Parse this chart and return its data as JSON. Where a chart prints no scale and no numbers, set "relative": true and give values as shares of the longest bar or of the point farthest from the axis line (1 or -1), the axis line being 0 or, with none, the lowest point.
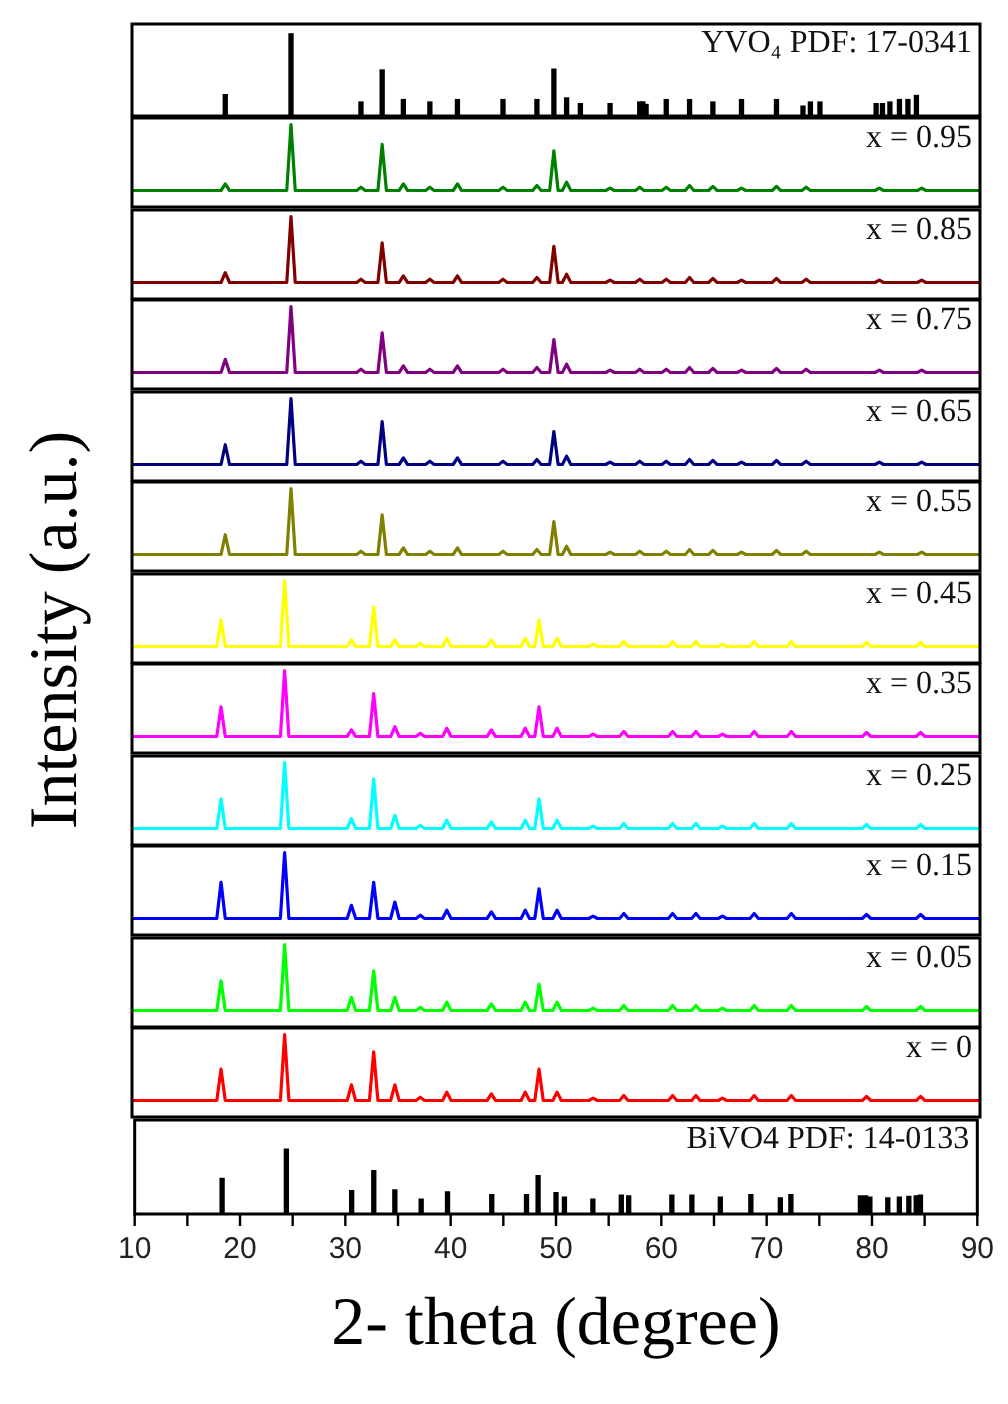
{
  "chart_data": [
    {
      "type": "bar",
      "relative": true,
      "color": "#000000",
      "ylabel": "Intensity (a.u.)",
      "xlim": [
        10,
        90
      ],
      "tick_labels": false,
      "annotations": [
        "YVO₄ PDF: 17-0341"
      ],
      "x": [
        18.8,
        25.0,
        31.6,
        33.6,
        35.6,
        38.1,
        40.7,
        45.0,
        48.2,
        49.8,
        51.0,
        52.3,
        55.1,
        57.9,
        58.2,
        58.5,
        60.4,
        62.6,
        64.8,
        67.5,
        70.8,
        73.3,
        74.0,
        74.9,
        80.2,
        80.8,
        81.5,
        82.4,
        83.2,
        84.0
      ],
      "values": [
        0.26,
        1,
        0.17,
        0.56,
        0.2,
        0.17,
        0.2,
        0.2,
        0.2,
        0.57,
        0.22,
        0.15,
        0.15,
        0.17,
        0.17,
        0.14,
        0.2,
        0.2,
        0.17,
        0.2,
        0.2,
        0.12,
        0.17,
        0.17,
        0.15,
        0.15,
        0.17,
        0.2,
        0.2,
        0.25
      ]
    },
    {
      "type": "line",
      "relative": true,
      "color": "#008000",
      "xlim": [
        10,
        90
      ],
      "tick_labels": false,
      "annotations": [
        "x = 0.95"
      ],
      "x": [
        10,
        18.4,
        18.8,
        19.2,
        24.6,
        25.0,
        25.4,
        31.2,
        31.6,
        32.0,
        33.2,
        33.6,
        34.0,
        35.2,
        35.6,
        36.0,
        37.7,
        38.1,
        38.5,
        40.3,
        40.7,
        41.1,
        44.6,
        45.0,
        45.4,
        47.8,
        48.2,
        48.6,
        49.4,
        49.8,
        50.2,
        50.6,
        51.0,
        51.4,
        54.7,
        55.1,
        55.5,
        57.5,
        57.9,
        58.3,
        60.0,
        60.4,
        60.8,
        62.2,
        62.6,
        63.0,
        64.4,
        64.8,
        65.2,
        67.1,
        67.5,
        67.9,
        70.4,
        70.8,
        71.2,
        73.2,
        73.6,
        74.0,
        80.1,
        80.5,
        80.9,
        84.1,
        84.5,
        84.9,
        90
      ],
      "values": [
        0.2,
        0.2,
        0.28,
        0.2,
        0.2,
        1,
        0.2,
        0.2,
        0.24,
        0.2,
        0.2,
        0.76,
        0.2,
        0.2,
        0.28,
        0.2,
        0.2,
        0.24,
        0.2,
        0.2,
        0.28,
        0.2,
        0.2,
        0.24,
        0.2,
        0.2,
        0.26,
        0.2,
        0.2,
        0.68,
        0.2,
        0.2,
        0.3,
        0.2,
        0.2,
        0.23,
        0.2,
        0.2,
        0.24,
        0.2,
        0.2,
        0.24,
        0.2,
        0.2,
        0.26,
        0.2,
        0.2,
        0.25,
        0.2,
        0.2,
        0.23,
        0.2,
        0.2,
        0.25,
        0.2,
        0.2,
        0.24,
        0.2,
        0.2,
        0.23,
        0.2,
        0.2,
        0.23,
        0.2,
        0.2
      ]
    },
    {
      "type": "line",
      "relative": true,
      "color": "#800000",
      "xlim": [
        10,
        90
      ],
      "tick_labels": false,
      "annotations": [
        "x = 0.85"
      ],
      "x": [
        10,
        18.4,
        18.8,
        19.2,
        24.6,
        25.0,
        25.4,
        31.2,
        31.6,
        32.0,
        33.2,
        33.6,
        34.0,
        35.2,
        35.6,
        36.0,
        37.7,
        38.1,
        38.5,
        40.3,
        40.7,
        41.1,
        44.6,
        45.0,
        45.4,
        47.8,
        48.2,
        48.6,
        49.4,
        49.8,
        50.2,
        50.6,
        51.0,
        51.4,
        54.7,
        55.1,
        55.5,
        57.5,
        57.9,
        58.3,
        60.0,
        60.4,
        60.8,
        62.2,
        62.6,
        63.0,
        64.4,
        64.8,
        65.2,
        67.1,
        67.5,
        67.9,
        70.4,
        70.8,
        71.2,
        73.2,
        73.6,
        74.0,
        80.1,
        80.5,
        80.9,
        84.1,
        84.5,
        84.9,
        90
      ],
      "values": [
        0.2,
        0.2,
        0.32,
        0.2,
        0.2,
        1,
        0.2,
        0.2,
        0.24,
        0.2,
        0.2,
        0.68,
        0.2,
        0.2,
        0.28,
        0.2,
        0.2,
        0.24,
        0.2,
        0.2,
        0.28,
        0.2,
        0.2,
        0.24,
        0.2,
        0.2,
        0.26,
        0.2,
        0.2,
        0.64,
        0.2,
        0.2,
        0.3,
        0.2,
        0.2,
        0.23,
        0.2,
        0.2,
        0.24,
        0.2,
        0.2,
        0.24,
        0.2,
        0.2,
        0.26,
        0.2,
        0.2,
        0.25,
        0.2,
        0.2,
        0.23,
        0.2,
        0.2,
        0.25,
        0.2,
        0.2,
        0.24,
        0.2,
        0.2,
        0.23,
        0.2,
        0.2,
        0.23,
        0.2,
        0.2
      ]
    },
    {
      "type": "line",
      "relative": true,
      "color": "#800080",
      "xlim": [
        10,
        90
      ],
      "tick_labels": false,
      "annotations": [
        "x = 0.75"
      ],
      "x": [
        10,
        18.4,
        18.8,
        19.2,
        24.6,
        25.0,
        25.4,
        31.2,
        31.6,
        32.0,
        33.2,
        33.6,
        34.0,
        35.2,
        35.6,
        36.0,
        37.7,
        38.1,
        38.5,
        40.3,
        40.7,
        41.1,
        44.6,
        45.0,
        45.4,
        47.8,
        48.2,
        48.6,
        49.4,
        49.8,
        50.2,
        50.6,
        51.0,
        51.4,
        54.7,
        55.1,
        55.5,
        57.5,
        57.9,
        58.3,
        60.0,
        60.4,
        60.8,
        62.2,
        62.6,
        63.0,
        64.4,
        64.8,
        65.2,
        67.1,
        67.5,
        67.9,
        70.4,
        70.8,
        71.2,
        73.2,
        73.6,
        74.0,
        80.1,
        80.5,
        80.9,
        84.1,
        84.5,
        84.9,
        90
      ],
      "values": [
        0.2,
        0.2,
        0.36,
        0.2,
        0.2,
        1,
        0.2,
        0.2,
        0.24,
        0.2,
        0.2,
        0.68,
        0.2,
        0.2,
        0.28,
        0.2,
        0.2,
        0.24,
        0.2,
        0.2,
        0.28,
        0.2,
        0.2,
        0.24,
        0.2,
        0.2,
        0.26,
        0.2,
        0.2,
        0.6,
        0.2,
        0.2,
        0.3,
        0.2,
        0.2,
        0.23,
        0.2,
        0.2,
        0.24,
        0.2,
        0.2,
        0.24,
        0.2,
        0.2,
        0.26,
        0.2,
        0.2,
        0.25,
        0.2,
        0.2,
        0.23,
        0.2,
        0.2,
        0.25,
        0.2,
        0.2,
        0.24,
        0.2,
        0.2,
        0.23,
        0.2,
        0.2,
        0.23,
        0.2,
        0.2
      ]
    },
    {
      "type": "line",
      "relative": true,
      "color": "#000080",
      "xlim": [
        10,
        90
      ],
      "tick_labels": false,
      "annotations": [
        "x = 0.65"
      ],
      "x": [
        10,
        18.4,
        18.8,
        19.2,
        24.6,
        25.0,
        25.4,
        31.2,
        31.6,
        32.0,
        33.2,
        33.6,
        34.0,
        35.2,
        35.6,
        36.0,
        37.7,
        38.1,
        38.5,
        40.3,
        40.7,
        41.1,
        44.6,
        45.0,
        45.4,
        47.8,
        48.2,
        48.6,
        49.4,
        49.8,
        50.2,
        50.6,
        51.0,
        51.4,
        54.7,
        55.1,
        55.5,
        57.5,
        57.9,
        58.3,
        60.0,
        60.4,
        60.8,
        62.2,
        62.6,
        63.0,
        64.4,
        64.8,
        65.2,
        67.1,
        67.5,
        67.9,
        70.4,
        70.8,
        71.2,
        73.2,
        73.6,
        74.0,
        80.1,
        80.5,
        80.9,
        84.1,
        84.5,
        84.9,
        90
      ],
      "values": [
        0.2,
        0.2,
        0.44,
        0.2,
        0.2,
        1,
        0.2,
        0.2,
        0.24,
        0.2,
        0.2,
        0.72,
        0.2,
        0.2,
        0.28,
        0.2,
        0.2,
        0.24,
        0.2,
        0.2,
        0.28,
        0.2,
        0.2,
        0.24,
        0.2,
        0.2,
        0.26,
        0.2,
        0.2,
        0.6,
        0.2,
        0.2,
        0.3,
        0.2,
        0.2,
        0.23,
        0.2,
        0.2,
        0.24,
        0.2,
        0.2,
        0.24,
        0.2,
        0.2,
        0.26,
        0.2,
        0.2,
        0.25,
        0.2,
        0.2,
        0.23,
        0.2,
        0.2,
        0.25,
        0.2,
        0.2,
        0.24,
        0.2,
        0.2,
        0.23,
        0.2,
        0.2,
        0.23,
        0.2,
        0.2
      ]
    },
    {
      "type": "line",
      "relative": true,
      "color": "#808000",
      "xlim": [
        10,
        90
      ],
      "tick_labels": false,
      "annotations": [
        "x = 0.55"
      ],
      "x": [
        10,
        18.4,
        18.8,
        19.2,
        24.6,
        25.0,
        25.4,
        31.2,
        31.6,
        32.0,
        33.2,
        33.6,
        34.0,
        35.2,
        35.6,
        36.0,
        37.7,
        38.1,
        38.5,
        40.3,
        40.7,
        41.1,
        44.6,
        45.0,
        45.4,
        47.8,
        48.2,
        48.6,
        49.4,
        49.8,
        50.2,
        50.6,
        51.0,
        51.4,
        54.7,
        55.1,
        55.5,
        57.5,
        57.9,
        58.3,
        60.0,
        60.4,
        60.8,
        62.2,
        62.6,
        63.0,
        64.4,
        64.8,
        65.2,
        67.1,
        67.5,
        67.9,
        70.4,
        70.8,
        71.2,
        73.2,
        73.6,
        74.0,
        80.1,
        80.5,
        80.9,
        84.1,
        84.5,
        84.9,
        90
      ],
      "values": [
        0.2,
        0.2,
        0.44,
        0.2,
        0.2,
        1,
        0.2,
        0.2,
        0.24,
        0.2,
        0.2,
        0.68,
        0.2,
        0.2,
        0.28,
        0.2,
        0.2,
        0.24,
        0.2,
        0.2,
        0.28,
        0.2,
        0.2,
        0.24,
        0.2,
        0.2,
        0.26,
        0.2,
        0.2,
        0.6,
        0.2,
        0.2,
        0.3,
        0.2,
        0.2,
        0.23,
        0.2,
        0.2,
        0.24,
        0.2,
        0.2,
        0.24,
        0.2,
        0.2,
        0.26,
        0.2,
        0.2,
        0.25,
        0.2,
        0.2,
        0.23,
        0.2,
        0.2,
        0.25,
        0.2,
        0.2,
        0.24,
        0.2,
        0.2,
        0.23,
        0.2,
        0.2,
        0.23,
        0.2,
        0.2
      ]
    },
    {
      "type": "line",
      "relative": true,
      "color": "#ffff00",
      "xlim": [
        10,
        90
      ],
      "tick_labels": false,
      "annotations": [
        "x = 0.45"
      ],
      "x": [
        10,
        18.0,
        18.4,
        18.8,
        24.0,
        24.4,
        24.8,
        30.3,
        30.7,
        31.1,
        32.4,
        32.8,
        33.2,
        34.4,
        34.8,
        35.2,
        36.8,
        37.2,
        37.6,
        39.3,
        39.7,
        40.1,
        43.5,
        43.9,
        44.3,
        46.7,
        47.1,
        47.5,
        48.0,
        48.4,
        48.8,
        49.7,
        50.1,
        50.5,
        53.1,
        53.5,
        53.9,
        56.0,
        56.4,
        56.8,
        60.6,
        61.0,
        61.4,
        62.8,
        63.2,
        63.6,
        65.3,
        65.7,
        66.1,
        68.3,
        68.7,
        69.1,
        71.8,
        72.2,
        72.6,
        78.9,
        79.3,
        79.7,
        84.0,
        84.4,
        84.8,
        90
      ],
      "values": [
        0.2,
        0.2,
        0.52,
        0.2,
        0.2,
        1,
        0.2,
        0.2,
        0.28,
        0.2,
        0.2,
        0.68,
        0.2,
        0.2,
        0.28,
        0.2,
        0.2,
        0.24,
        0.2,
        0.2,
        0.3,
        0.2,
        0.2,
        0.28,
        0.2,
        0.2,
        0.3,
        0.2,
        0.2,
        0.52,
        0.2,
        0.2,
        0.3,
        0.2,
        0.2,
        0.23,
        0.2,
        0.2,
        0.26,
        0.2,
        0.2,
        0.26,
        0.2,
        0.2,
        0.26,
        0.2,
        0.2,
        0.23,
        0.2,
        0.2,
        0.26,
        0.2,
        0.2,
        0.26,
        0.2,
        0.2,
        0.25,
        0.2,
        0.2,
        0.25,
        0.2,
        0.2
      ]
    },
    {
      "type": "line",
      "relative": true,
      "color": "#ff00ff",
      "xlim": [
        10,
        90
      ],
      "tick_labels": false,
      "annotations": [
        "x = 0.35"
      ],
      "x": [
        10,
        18.0,
        18.4,
        18.8,
        24.0,
        24.4,
        24.8,
        30.3,
        30.7,
        31.1,
        32.4,
        32.8,
        33.2,
        34.4,
        34.8,
        35.2,
        36.8,
        37.2,
        37.6,
        39.3,
        39.7,
        40.1,
        43.5,
        43.9,
        44.3,
        46.7,
        47.1,
        47.5,
        48.0,
        48.4,
        48.8,
        49.7,
        50.1,
        50.5,
        53.1,
        53.5,
        53.9,
        56.0,
        56.4,
        56.8,
        60.6,
        61.0,
        61.4,
        62.8,
        63.2,
        63.6,
        65.3,
        65.7,
        66.1,
        68.3,
        68.7,
        69.1,
        71.8,
        72.2,
        72.6,
        78.9,
        79.3,
        79.7,
        84.0,
        84.4,
        84.8,
        90
      ],
      "values": [
        0.2,
        0.2,
        0.56,
        0.2,
        0.2,
        1,
        0.2,
        0.2,
        0.28,
        0.2,
        0.2,
        0.72,
        0.2,
        0.2,
        0.32,
        0.2,
        0.2,
        0.24,
        0.2,
        0.2,
        0.3,
        0.2,
        0.2,
        0.28,
        0.2,
        0.2,
        0.3,
        0.2,
        0.2,
        0.56,
        0.2,
        0.2,
        0.3,
        0.2,
        0.2,
        0.23,
        0.2,
        0.2,
        0.26,
        0.2,
        0.2,
        0.26,
        0.2,
        0.2,
        0.26,
        0.2,
        0.2,
        0.23,
        0.2,
        0.2,
        0.26,
        0.2,
        0.2,
        0.26,
        0.2,
        0.2,
        0.25,
        0.2,
        0.2,
        0.25,
        0.2,
        0.2
      ]
    },
    {
      "type": "line",
      "relative": true,
      "color": "#00ffff",
      "xlim": [
        10,
        90
      ],
      "tick_labels": false,
      "annotations": [
        "x = 0.25"
      ],
      "x": [
        10,
        18.0,
        18.4,
        18.8,
        24.0,
        24.4,
        24.8,
        30.3,
        30.7,
        31.1,
        32.4,
        32.8,
        33.2,
        34.4,
        34.8,
        35.2,
        36.8,
        37.2,
        37.6,
        39.3,
        39.7,
        40.1,
        43.5,
        43.9,
        44.3,
        46.7,
        47.1,
        47.5,
        48.0,
        48.4,
        48.8,
        49.7,
        50.1,
        50.5,
        53.1,
        53.5,
        53.9,
        56.0,
        56.4,
        56.8,
        60.6,
        61.0,
        61.4,
        62.8,
        63.2,
        63.6,
        65.3,
        65.7,
        66.1,
        68.3,
        68.7,
        69.1,
        71.8,
        72.2,
        72.6,
        78.9,
        79.3,
        79.7,
        84.0,
        84.4,
        84.8,
        90
      ],
      "values": [
        0.2,
        0.2,
        0.56,
        0.2,
        0.2,
        1,
        0.2,
        0.2,
        0.32,
        0.2,
        0.2,
        0.8,
        0.2,
        0.2,
        0.36,
        0.2,
        0.2,
        0.24,
        0.2,
        0.2,
        0.3,
        0.2,
        0.2,
        0.28,
        0.2,
        0.2,
        0.3,
        0.2,
        0.2,
        0.56,
        0.2,
        0.2,
        0.3,
        0.2,
        0.2,
        0.23,
        0.2,
        0.2,
        0.26,
        0.2,
        0.2,
        0.26,
        0.2,
        0.2,
        0.26,
        0.2,
        0.2,
        0.23,
        0.2,
        0.2,
        0.26,
        0.2,
        0.2,
        0.26,
        0.2,
        0.2,
        0.25,
        0.2,
        0.2,
        0.25,
        0.2,
        0.2
      ]
    },
    {
      "type": "line",
      "relative": true,
      "color": "#0000ff",
      "xlim": [
        10,
        90
      ],
      "tick_labels": false,
      "annotations": [
        "x = 0.15"
      ],
      "x": [
        10,
        18.0,
        18.4,
        18.8,
        24.0,
        24.4,
        24.8,
        30.3,
        30.7,
        31.1,
        32.4,
        32.8,
        33.2,
        34.4,
        34.8,
        35.2,
        36.8,
        37.2,
        37.6,
        39.3,
        39.7,
        40.1,
        43.5,
        43.9,
        44.3,
        46.7,
        47.1,
        47.5,
        48.0,
        48.4,
        48.8,
        49.7,
        50.1,
        50.5,
        53.1,
        53.5,
        53.9,
        56.0,
        56.4,
        56.8,
        60.6,
        61.0,
        61.4,
        62.8,
        63.2,
        63.6,
        65.3,
        65.7,
        66.1,
        68.3,
        68.7,
        69.1,
        71.8,
        72.2,
        72.6,
        78.9,
        79.3,
        79.7,
        84.0,
        84.4,
        84.8,
        90
      ],
      "values": [
        0.2,
        0.2,
        0.64,
        0.2,
        0.2,
        1,
        0.2,
        0.2,
        0.36,
        0.2,
        0.2,
        0.64,
        0.2,
        0.2,
        0.4,
        0.2,
        0.2,
        0.24,
        0.2,
        0.2,
        0.3,
        0.2,
        0.2,
        0.28,
        0.2,
        0.2,
        0.3,
        0.2,
        0.2,
        0.56,
        0.2,
        0.2,
        0.3,
        0.2,
        0.2,
        0.23,
        0.2,
        0.2,
        0.26,
        0.2,
        0.2,
        0.26,
        0.2,
        0.2,
        0.26,
        0.2,
        0.2,
        0.23,
        0.2,
        0.2,
        0.26,
        0.2,
        0.2,
        0.26,
        0.2,
        0.2,
        0.25,
        0.2,
        0.2,
        0.25,
        0.2,
        0.2
      ]
    },
    {
      "type": "line",
      "relative": true,
      "color": "#00ff00",
      "xlim": [
        10,
        90
      ],
      "tick_labels": false,
      "annotations": [
        "x = 0.05"
      ],
      "x": [
        10,
        18.0,
        18.4,
        18.8,
        24.0,
        24.4,
        24.8,
        30.3,
        30.7,
        31.1,
        32.4,
        32.8,
        33.2,
        34.4,
        34.8,
        35.2,
        36.8,
        37.2,
        37.6,
        39.3,
        39.7,
        40.1,
        43.5,
        43.9,
        44.3,
        46.7,
        47.1,
        47.5,
        48.0,
        48.4,
        48.8,
        49.7,
        50.1,
        50.5,
        53.1,
        53.5,
        53.9,
        56.0,
        56.4,
        56.8,
        60.6,
        61.0,
        61.4,
        62.8,
        63.2,
        63.6,
        65.3,
        65.7,
        66.1,
        68.3,
        68.7,
        69.1,
        71.8,
        72.2,
        72.6,
        78.9,
        79.3,
        79.7,
        84.0,
        84.4,
        84.8,
        90
      ],
      "values": [
        0.2,
        0.2,
        0.56,
        0.2,
        0.2,
        1,
        0.2,
        0.2,
        0.36,
        0.2,
        0.2,
        0.68,
        0.2,
        0.2,
        0.36,
        0.2,
        0.2,
        0.24,
        0.2,
        0.2,
        0.3,
        0.2,
        0.2,
        0.28,
        0.2,
        0.2,
        0.3,
        0.2,
        0.2,
        0.52,
        0.2,
        0.2,
        0.3,
        0.2,
        0.2,
        0.23,
        0.2,
        0.2,
        0.26,
        0.2,
        0.2,
        0.26,
        0.2,
        0.2,
        0.26,
        0.2,
        0.2,
        0.23,
        0.2,
        0.2,
        0.26,
        0.2,
        0.2,
        0.26,
        0.2,
        0.2,
        0.25,
        0.2,
        0.2,
        0.25,
        0.2,
        0.2
      ]
    },
    {
      "type": "line",
      "relative": true,
      "color": "#ff0000",
      "xlim": [
        10,
        90
      ],
      "tick_labels": false,
      "annotations": [
        "x = 0"
      ],
      "x": [
        10,
        18.0,
        18.4,
        18.8,
        24.0,
        24.4,
        24.8,
        30.3,
        30.7,
        31.1,
        32.4,
        32.8,
        33.2,
        34.4,
        34.8,
        35.2,
        36.8,
        37.2,
        37.6,
        39.3,
        39.7,
        40.1,
        43.5,
        43.9,
        44.3,
        46.7,
        47.1,
        47.5,
        48.0,
        48.4,
        48.8,
        49.7,
        50.1,
        50.5,
        53.1,
        53.5,
        53.9,
        56.0,
        56.4,
        56.8,
        60.6,
        61.0,
        61.4,
        62.8,
        63.2,
        63.6,
        65.3,
        65.7,
        66.1,
        68.3,
        68.7,
        69.1,
        71.8,
        72.2,
        72.6,
        78.9,
        79.3,
        79.7,
        84.0,
        84.4,
        84.8,
        90
      ],
      "values": [
        0.2,
        0.2,
        0.58,
        0.2,
        0.2,
        1,
        0.2,
        0.2,
        0.39,
        0.2,
        0.2,
        0.79,
        0.2,
        0.2,
        0.39,
        0.2,
        0.2,
        0.24,
        0.2,
        0.2,
        0.3,
        0.2,
        0.2,
        0.28,
        0.2,
        0.2,
        0.3,
        0.2,
        0.2,
        0.58,
        0.2,
        0.2,
        0.3,
        0.2,
        0.2,
        0.23,
        0.2,
        0.2,
        0.26,
        0.2,
        0.2,
        0.26,
        0.2,
        0.2,
        0.26,
        0.2,
        0.2,
        0.23,
        0.2,
        0.2,
        0.26,
        0.2,
        0.2,
        0.26,
        0.2,
        0.2,
        0.25,
        0.2,
        0.2,
        0.25,
        0.2,
        0.2
      ]
    },
    {
      "type": "bar",
      "relative": true,
      "color": "#000000",
      "xlabel": "2- theta (degree)",
      "xlim": [
        10,
        90
      ],
      "tick_labels": "x",
      "annotations": [
        "BiVO4 PDF: 14-0133"
      ],
      "xticks": [
        10,
        {
          "value": 15,
          "label": null
        },
        20,
        {
          "value": 25,
          "label": null
        },
        30,
        {
          "value": 35,
          "label": null
        },
        40,
        {
          "value": 45,
          "label": null
        },
        50,
        {
          "value": 55,
          "label": null
        },
        60,
        {
          "value": 65,
          "label": null
        },
        70,
        {
          "value": 75,
          "label": null
        },
        80,
        {
          "value": 85,
          "label": null
        },
        90
      ],
      "x": [
        18.3,
        24.4,
        30.6,
        32.7,
        34.7,
        37.2,
        39.7,
        43.9,
        47.2,
        48.3,
        50.0,
        50.8,
        53.5,
        56.2,
        56.9,
        61.0,
        62.9,
        65.6,
        68.5,
        71.3,
        72.3,
        78.9,
        79.4,
        79.8,
        81.5,
        82.6,
        83.5,
        84.2,
        84.6
      ],
      "values": [
        0.55,
        1,
        0.36,
        0.67,
        0.37,
        0.23,
        0.34,
        0.3,
        0.3,
        0.59,
        0.33,
        0.26,
        0.23,
        0.29,
        0.28,
        0.29,
        0.29,
        0.26,
        0.3,
        0.25,
        0.3,
        0.28,
        0.28,
        0.26,
        0.25,
        0.26,
        0.27,
        0.28,
        0.29
      ]
    }
  ]
}
